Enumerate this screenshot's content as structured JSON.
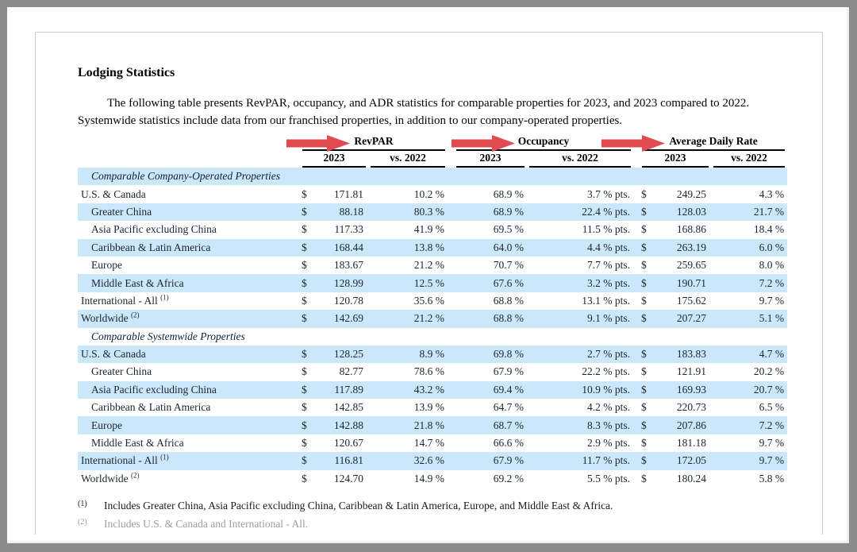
{
  "document": {
    "title": "Lodging Statistics",
    "intro": "The following table presents RevPAR, occupancy, and ADR statistics for comparable properties for 2023, and 2023 compared to 2022. Systemwide statistics include data from our franchised properties, in addition to our company-operated properties."
  },
  "colors": {
    "row_highlight": "#cbe8fb",
    "arrow": "#e14b50",
    "rule": "#000000"
  },
  "annotations": {
    "arrows": [
      "revpar-arrow",
      "occupancy-arrow",
      "average-daily-rate-arrow"
    ]
  },
  "table": {
    "currency_symbol": "$",
    "groups": [
      {
        "label": "RevPAR",
        "sub_2023": "2023",
        "sub_vs": "vs. 2022"
      },
      {
        "label": "Occupancy",
        "sub_2023": "2023",
        "sub_vs": "vs. 2022"
      },
      {
        "label": "Average Daily Rate",
        "sub_2023": "2023",
        "sub_vs": "vs. 2022"
      }
    ],
    "sections": [
      {
        "label": "Comparable Company-Operated Properties",
        "shaded": true,
        "rows": [
          {
            "name": "U.S. & Canada",
            "sup": "",
            "indent": false,
            "shaded": false,
            "revpar": "171.81",
            "revpar_vs": "10.2 %",
            "occ": "68.9 %",
            "occ_vs": "3.7 % pts.",
            "adr": "249.25",
            "adr_vs": "4.3 %"
          },
          {
            "name": "Greater China",
            "sup": "",
            "indent": true,
            "shaded": true,
            "revpar": "88.18",
            "revpar_vs": "80.3 %",
            "occ": "68.9 %",
            "occ_vs": "22.4 % pts.",
            "adr": "128.03",
            "adr_vs": "21.7 %"
          },
          {
            "name": "Asia Pacific excluding China",
            "sup": "",
            "indent": true,
            "shaded": false,
            "revpar": "117.33",
            "revpar_vs": "41.9 %",
            "occ": "69.5 %",
            "occ_vs": "11.5 % pts.",
            "adr": "168.86",
            "adr_vs": "18.4 %"
          },
          {
            "name": "Caribbean & Latin America",
            "sup": "",
            "indent": true,
            "shaded": true,
            "revpar": "168.44",
            "revpar_vs": "13.8 %",
            "occ": "64.0 %",
            "occ_vs": "4.4 % pts.",
            "adr": "263.19",
            "adr_vs": "6.0 %"
          },
          {
            "name": "Europe",
            "sup": "",
            "indent": true,
            "shaded": false,
            "revpar": "183.67",
            "revpar_vs": "21.2 %",
            "occ": "70.7 %",
            "occ_vs": "7.7 % pts.",
            "adr": "259.65",
            "adr_vs": "8.0 %"
          },
          {
            "name": "Middle East & Africa",
            "sup": "",
            "indent": true,
            "shaded": true,
            "revpar": "128.99",
            "revpar_vs": "12.5 %",
            "occ": "67.6 %",
            "occ_vs": "3.2 % pts.",
            "adr": "190.71",
            "adr_vs": "7.2 %"
          },
          {
            "name": "International - All",
            "sup": "(1)",
            "indent": false,
            "shaded": false,
            "revpar": "120.78",
            "revpar_vs": "35.6 %",
            "occ": "68.8 %",
            "occ_vs": "13.1 % pts.",
            "adr": "175.62",
            "adr_vs": "9.7 %"
          },
          {
            "name": "Worldwide",
            "sup": "(2)",
            "indent": false,
            "shaded": true,
            "revpar": "142.69",
            "revpar_vs": "21.2 %",
            "occ": "68.8 %",
            "occ_vs": "9.1 % pts.",
            "adr": "207.27",
            "adr_vs": "5.1 %"
          }
        ]
      },
      {
        "label": "Comparable Systemwide Properties",
        "shaded": false,
        "rows": [
          {
            "name": "U.S. & Canada",
            "sup": "",
            "indent": false,
            "shaded": true,
            "revpar": "128.25",
            "revpar_vs": "8.9 %",
            "occ": "69.8 %",
            "occ_vs": "2.7 % pts.",
            "adr": "183.83",
            "adr_vs": "4.7 %"
          },
          {
            "name": "Greater China",
            "sup": "",
            "indent": true,
            "shaded": false,
            "revpar": "82.77",
            "revpar_vs": "78.6 %",
            "occ": "67.9 %",
            "occ_vs": "22.2 % pts.",
            "adr": "121.91",
            "adr_vs": "20.2 %"
          },
          {
            "name": "Asia Pacific excluding China",
            "sup": "",
            "indent": true,
            "shaded": true,
            "revpar": "117.89",
            "revpar_vs": "43.2 %",
            "occ": "69.4 %",
            "occ_vs": "10.9 % pts.",
            "adr": "169.93",
            "adr_vs": "20.7 %"
          },
          {
            "name": "Caribbean & Latin America",
            "sup": "",
            "indent": true,
            "shaded": false,
            "revpar": "142.85",
            "revpar_vs": "13.9 %",
            "occ": "64.7 %",
            "occ_vs": "4.2 % pts.",
            "adr": "220.73",
            "adr_vs": "6.5 %"
          },
          {
            "name": "Europe",
            "sup": "",
            "indent": true,
            "shaded": true,
            "revpar": "142.88",
            "revpar_vs": "21.8 %",
            "occ": "68.7 %",
            "occ_vs": "8.3 % pts.",
            "adr": "207.86",
            "adr_vs": "7.2 %"
          },
          {
            "name": "Middle East & Africa",
            "sup": "",
            "indent": true,
            "shaded": false,
            "revpar": "120.67",
            "revpar_vs": "14.7 %",
            "occ": "66.6 %",
            "occ_vs": "2.9 % pts.",
            "adr": "181.18",
            "adr_vs": "9.7 %"
          },
          {
            "name": "International - All",
            "sup": "(1)",
            "indent": false,
            "shaded": true,
            "revpar": "116.81",
            "revpar_vs": "32.6 %",
            "occ": "67.9 %",
            "occ_vs": "11.7 % pts.",
            "adr": "172.05",
            "adr_vs": "9.7 %"
          },
          {
            "name": "Worldwide",
            "sup": "(2)",
            "indent": false,
            "shaded": false,
            "revpar": "124.70",
            "revpar_vs": "14.9 %",
            "occ": "69.2 %",
            "occ_vs": "5.5 % pts.",
            "adr": "180.24",
            "adr_vs": "5.8 %"
          }
        ]
      }
    ],
    "footnotes": [
      {
        "marker": "(1)",
        "text": "Includes Greater China, Asia Pacific excluding China, Caribbean & Latin America, Europe, and Middle East & Africa.",
        "faded": false
      },
      {
        "marker": "(2)",
        "text": "Includes U.S. & Canada and International - All.",
        "faded": true
      }
    ]
  }
}
